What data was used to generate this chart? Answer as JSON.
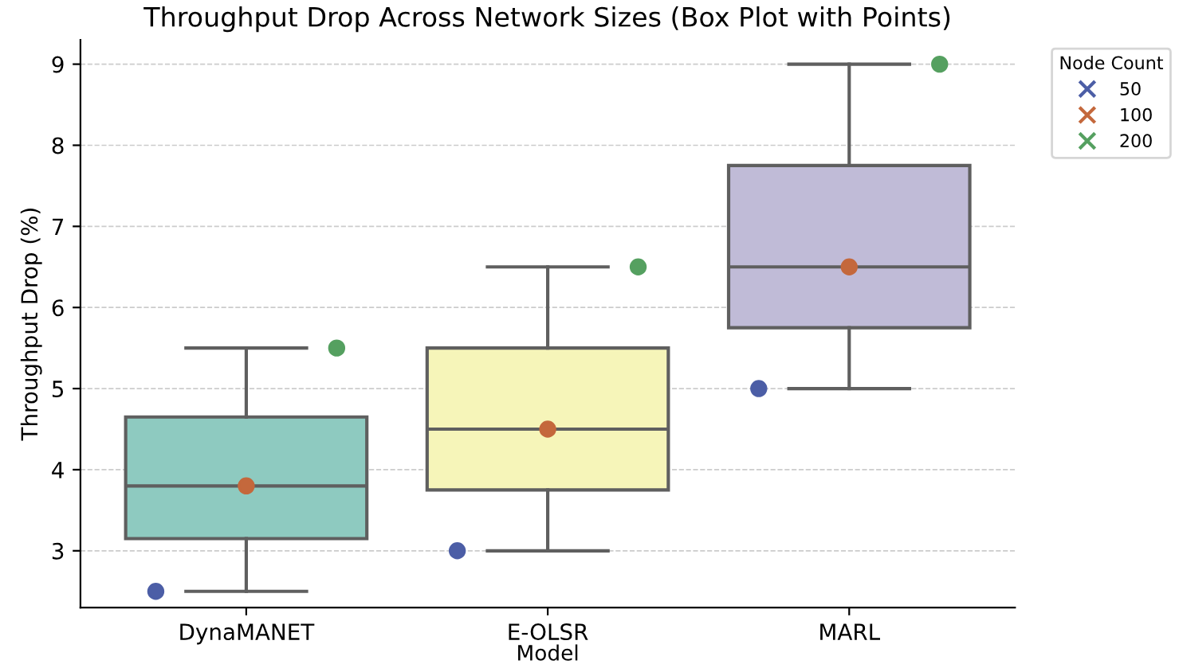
{
  "chart_data": {
    "type": "box",
    "title": "Throughput Drop Across Network Sizes (Box Plot with Points)",
    "xlabel": "Model",
    "ylabel": "Throughput Drop (%)",
    "categories": [
      "DynaMANET",
      "E-OLSR",
      "MARL"
    ],
    "colors": [
      "#8ecac0",
      "#f6f5b9",
      "#c0bbd7"
    ],
    "boxes": [
      {
        "low": 2.5,
        "q1": 3.15,
        "median": 3.8,
        "q3": 4.65,
        "high": 5.5
      },
      {
        "low": 3,
        "q1": 3.75,
        "median": 4.5,
        "q3": 5.5,
        "high": 6.5
      },
      {
        "low": 5,
        "q1": 5.75,
        "median": 6.5,
        "q3": 7.75,
        "high": 9
      }
    ],
    "series": [
      {
        "type": "scatter",
        "name": "50",
        "color": "#4c5ea6",
        "x": [
          "DynaMANET",
          "E-OLSR",
          "MARL"
        ],
        "values": [
          2.5,
          3,
          5
        ]
      },
      {
        "type": "scatter",
        "name": "100",
        "color": "#c4683c",
        "x": [
          "DynaMANET",
          "E-OLSR",
          "MARL"
        ],
        "values": [
          3.8,
          4.5,
          6.5
        ]
      },
      {
        "type": "scatter",
        "name": "200",
        "color": "#55a060",
        "x": [
          "DynaMANET",
          "E-OLSR",
          "MARL"
        ],
        "values": [
          5.5,
          6.5,
          9
        ]
      }
    ],
    "legend_title": "Node Count",
    "legend": "top right",
    "marker": "circle",
    "ylim": [
      2.3,
      9.3
    ],
    "yticks": [
      3,
      4,
      5,
      6,
      7,
      8,
      9
    ],
    "grid": "y"
  }
}
